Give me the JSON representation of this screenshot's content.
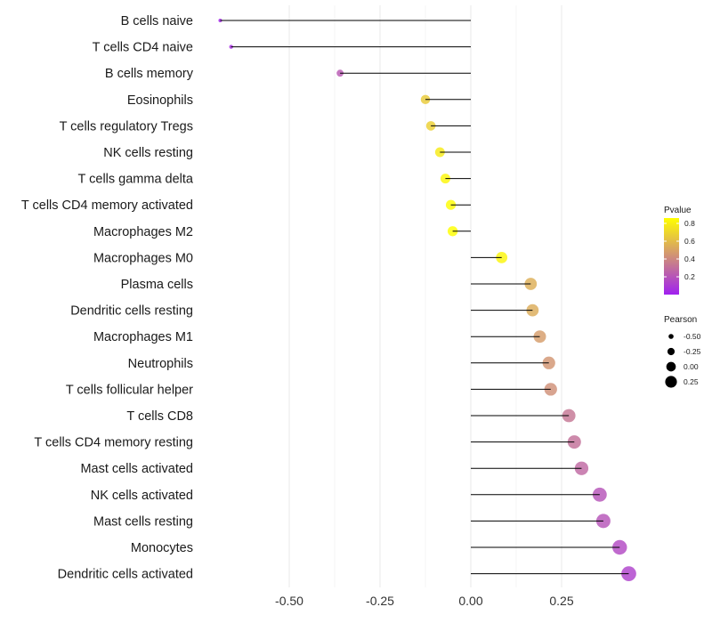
{
  "chart_data": {
    "type": "lollipop",
    "title": "",
    "xlabel": "",
    "ylabel": "",
    "xlim": [
      -0.69,
      0.44
    ],
    "x_ticks": [
      -0.5,
      -0.25,
      0.0,
      0.25
    ],
    "x_tick_labels": [
      "-0.50",
      "-0.25",
      "0.00",
      "0.25"
    ],
    "grid": true,
    "categories": [
      "B cells naive",
      "T cells CD4 naive",
      "B cells memory",
      "Eosinophils",
      "T cells regulatory  Tregs ",
      "NK cells resting",
      "T cells gamma delta",
      "T cells CD4 memory activated",
      "Macrophages M2",
      "Macrophages M0",
      "Plasma cells",
      "Dendritic cells resting",
      "Macrophages M1",
      "Neutrophils",
      "T cells follicular helper",
      "T cells CD8",
      "T cells CD4 memory resting",
      "Mast cells activated",
      "NK cells activated",
      "Mast cells resting",
      "Monocytes",
      "Dendritic cells activated"
    ],
    "pearson": [
      -0.69,
      -0.66,
      -0.36,
      -0.125,
      -0.11,
      -0.085,
      -0.07,
      -0.055,
      -0.05,
      0.085,
      0.165,
      0.17,
      0.19,
      0.215,
      0.22,
      0.27,
      0.285,
      0.305,
      0.355,
      0.365,
      0.41,
      0.435
    ],
    "pvalue": [
      0.02,
      0.05,
      0.22,
      0.66,
      0.68,
      0.78,
      0.83,
      0.85,
      0.86,
      0.82,
      0.55,
      0.54,
      0.48,
      0.45,
      0.43,
      0.33,
      0.31,
      0.28,
      0.2,
      0.2,
      0.16,
      0.13
    ],
    "legend_placement": "right",
    "color_legend": {
      "title": "Pvalue",
      "ticks": [
        0.8,
        0.6,
        0.4,
        0.2
      ],
      "tick_labels": [
        "0.8",
        "0.6",
        "0.4",
        "0.2"
      ],
      "range": [
        0.0,
        0.86
      ],
      "low_color": "#a020f0",
      "high_color": "#ffff00"
    },
    "size_legend": {
      "title": "Pearson",
      "values": [
        -0.5,
        -0.25,
        0.0,
        0.25
      ],
      "labels": [
        "-0.50",
        "-0.25",
        "0.00",
        "0.25"
      ]
    }
  },
  "colors": {
    "background": "#ffffff",
    "grid": "#ebebeb",
    "segment": "#000000"
  }
}
